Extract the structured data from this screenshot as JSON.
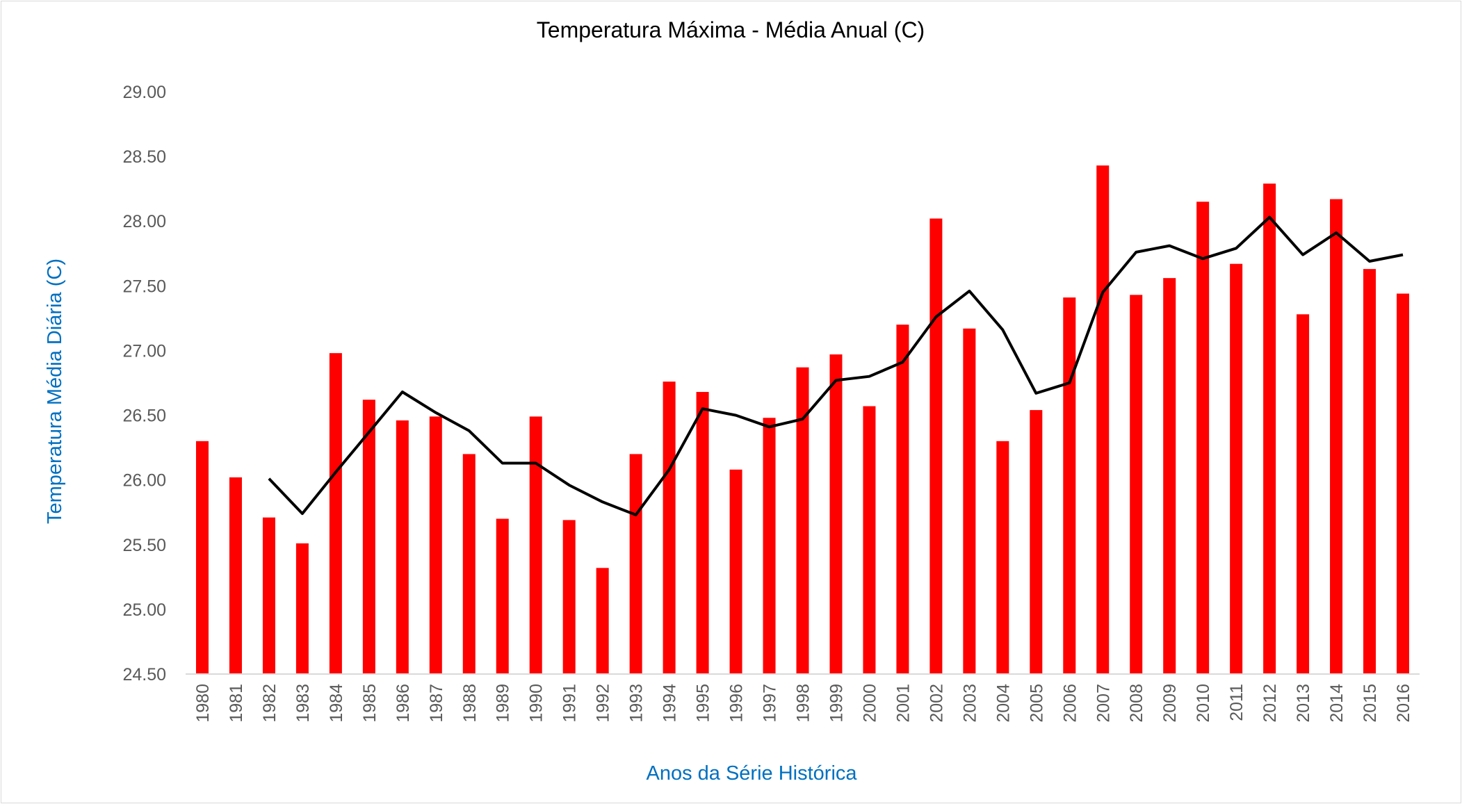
{
  "chart_data": {
    "type": "bar",
    "title": "Temperatura Máxima - Média Anual (C)",
    "xlabel": "Anos da Série Histórica",
    "ylabel": "Temperatura Média Diária (C)",
    "ylim": [
      24.5,
      29.0
    ],
    "y_ticks": [
      "24.50",
      "25.00",
      "25.50",
      "26.00",
      "26.50",
      "27.00",
      "27.50",
      "28.00",
      "28.50",
      "29.00"
    ],
    "grid": false,
    "legend": "none",
    "categories": [
      "1980",
      "1981",
      "1982",
      "1983",
      "1984",
      "1985",
      "1986",
      "1987",
      "1988",
      "1989",
      "1990",
      "1991",
      "1992",
      "1993",
      "1994",
      "1995",
      "1996",
      "1997",
      "1998",
      "1999",
      "2000",
      "2001",
      "2002",
      "2003",
      "2004",
      "2005",
      "2006",
      "2007",
      "2008",
      "2009",
      "2010",
      "2011",
      "2012",
      "2013",
      "2014",
      "2015",
      "2016"
    ],
    "series": [
      {
        "type": "bar",
        "color": "#ff0000",
        "values": [
          26.3,
          26.02,
          25.71,
          25.51,
          26.98,
          26.62,
          26.46,
          26.49,
          26.2,
          25.7,
          26.49,
          25.69,
          25.32,
          26.2,
          26.76,
          26.68,
          26.08,
          26.48,
          26.87,
          26.97,
          26.57,
          27.2,
          28.02,
          27.17,
          26.3,
          26.54,
          27.41,
          28.43,
          27.43,
          27.56,
          28.15,
          27.67,
          28.29,
          27.28,
          28.17,
          27.63,
          27.44
        ]
      },
      {
        "type": "line",
        "color": "#000000",
        "values": [
          null,
          null,
          26.01,
          25.74,
          26.06,
          26.37,
          26.68,
          26.52,
          26.38,
          26.13,
          26.13,
          25.96,
          25.83,
          25.73,
          26.08,
          26.55,
          26.5,
          26.41,
          26.47,
          26.77,
          26.8,
          26.91,
          27.26,
          27.46,
          27.16,
          26.67,
          26.75,
          27.45,
          27.76,
          27.81,
          27.71,
          27.79,
          28.03,
          27.74,
          27.91,
          27.69,
          27.74
        ]
      }
    ]
  }
}
